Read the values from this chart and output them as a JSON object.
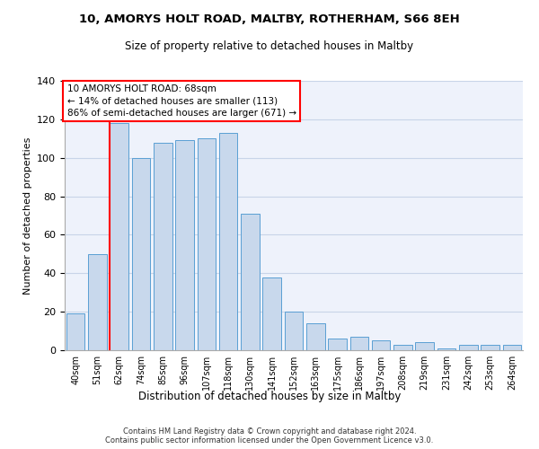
{
  "title1": "10, AMORYS HOLT ROAD, MALTBY, ROTHERHAM, S66 8EH",
  "title2": "Size of property relative to detached houses in Maltby",
  "xlabel": "Distribution of detached houses by size in Maltby",
  "ylabel": "Number of detached properties",
  "categories": [
    "40sqm",
    "51sqm",
    "62sqm",
    "74sqm",
    "85sqm",
    "96sqm",
    "107sqm",
    "118sqm",
    "130sqm",
    "141sqm",
    "152sqm",
    "163sqm",
    "175sqm",
    "186sqm",
    "197sqm",
    "208sqm",
    "219sqm",
    "231sqm",
    "242sqm",
    "253sqm",
    "264sqm"
  ],
  "values": [
    19,
    50,
    118,
    100,
    108,
    109,
    110,
    113,
    71,
    38,
    20,
    14,
    6,
    7,
    5,
    3,
    4,
    1,
    3,
    3,
    3
  ],
  "bar_color": "#c8d8ec",
  "bar_edge_color": "#5a9fd4",
  "bar_edge_width": 0.7,
  "grid_color": "#c8d4e8",
  "background_color": "#eef2fb",
  "property_bin_index": 2,
  "annotation_text": "10 AMORYS HOLT ROAD: 68sqm\n← 14% of detached houses are smaller (113)\n86% of semi-detached houses are larger (671) →",
  "annotation_box_color": "white",
  "annotation_box_edge_color": "red",
  "red_line_color": "red",
  "footer": "Contains HM Land Registry data © Crown copyright and database right 2024.\nContains public sector information licensed under the Open Government Licence v3.0.",
  "ylim": [
    0,
    140
  ],
  "yticks": [
    0,
    20,
    40,
    60,
    80,
    100,
    120,
    140
  ]
}
